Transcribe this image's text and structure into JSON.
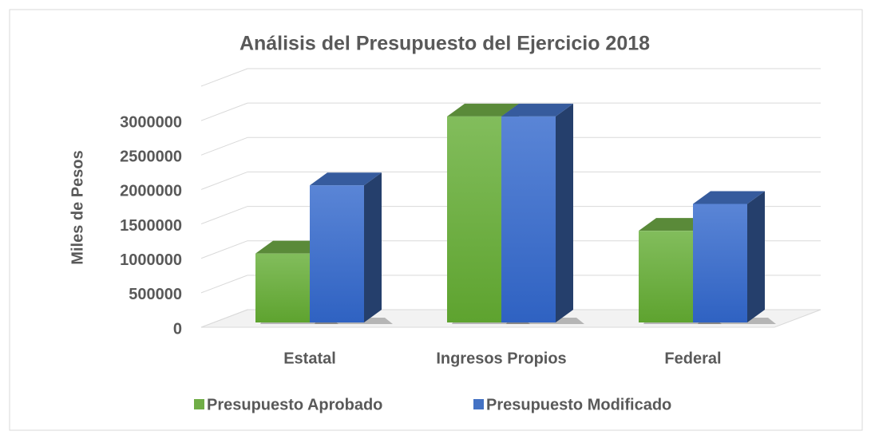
{
  "chart_data": {
    "type": "bar3d",
    "title": "Análisis del Presupuesto del Ejercicio 2018",
    "y_label": "Miles de Pesos",
    "categories": [
      "Estatal",
      "Ingresos Propios",
      "Federal"
    ],
    "series": [
      {
        "name": "Presupuesto Aprobado",
        "color": "#70ad47",
        "values": [
          1000000,
          2990000,
          1330000
        ]
      },
      {
        "name": "Presupuesto Modificado",
        "color": "#4472c4",
        "values": [
          1990000,
          2990000,
          1720000
        ]
      }
    ],
    "ylim": [
      0,
      3500000
    ],
    "yticks": [
      0,
      500000,
      1000000,
      1500000,
      2000000,
      2500000,
      3000000
    ],
    "grid": true,
    "legend": "bottom"
  }
}
